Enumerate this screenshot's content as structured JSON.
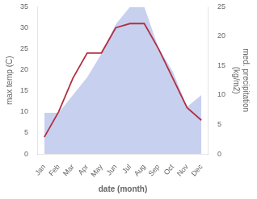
{
  "chart_data": {
    "type": "line",
    "categories": [
      "Jan",
      "Feb",
      "Mar",
      "Apr",
      "May",
      "Jun",
      "Jul",
      "Aug",
      "Sep",
      "Oct",
      "Nov",
      "Dec"
    ],
    "series": [
      {
        "type": "area",
        "color": "#c8d0f0",
        "axis": "y2",
        "values": [
          7,
          7,
          10,
          13,
          17,
          22,
          25,
          25,
          18,
          14,
          8,
          10
        ]
      },
      {
        "type": "line",
        "color": "#b03040",
        "values": [
          4,
          10,
          18,
          24,
          24,
          30,
          31,
          31,
          25,
          18,
          11,
          8
        ]
      }
    ],
    "xlabel": "date (month)",
    "ylabel": "max temp (C)",
    "y2label": "med. precipitation\n(kg/m2)",
    "ylim": [
      0,
      35
    ],
    "yticks": [
      0,
      5,
      10,
      15,
      20,
      25,
      30,
      35
    ],
    "y2lim": [
      0,
      25
    ],
    "y2ticks": [
      0,
      5,
      10,
      15,
      20,
      25
    ],
    "grid": false
  }
}
